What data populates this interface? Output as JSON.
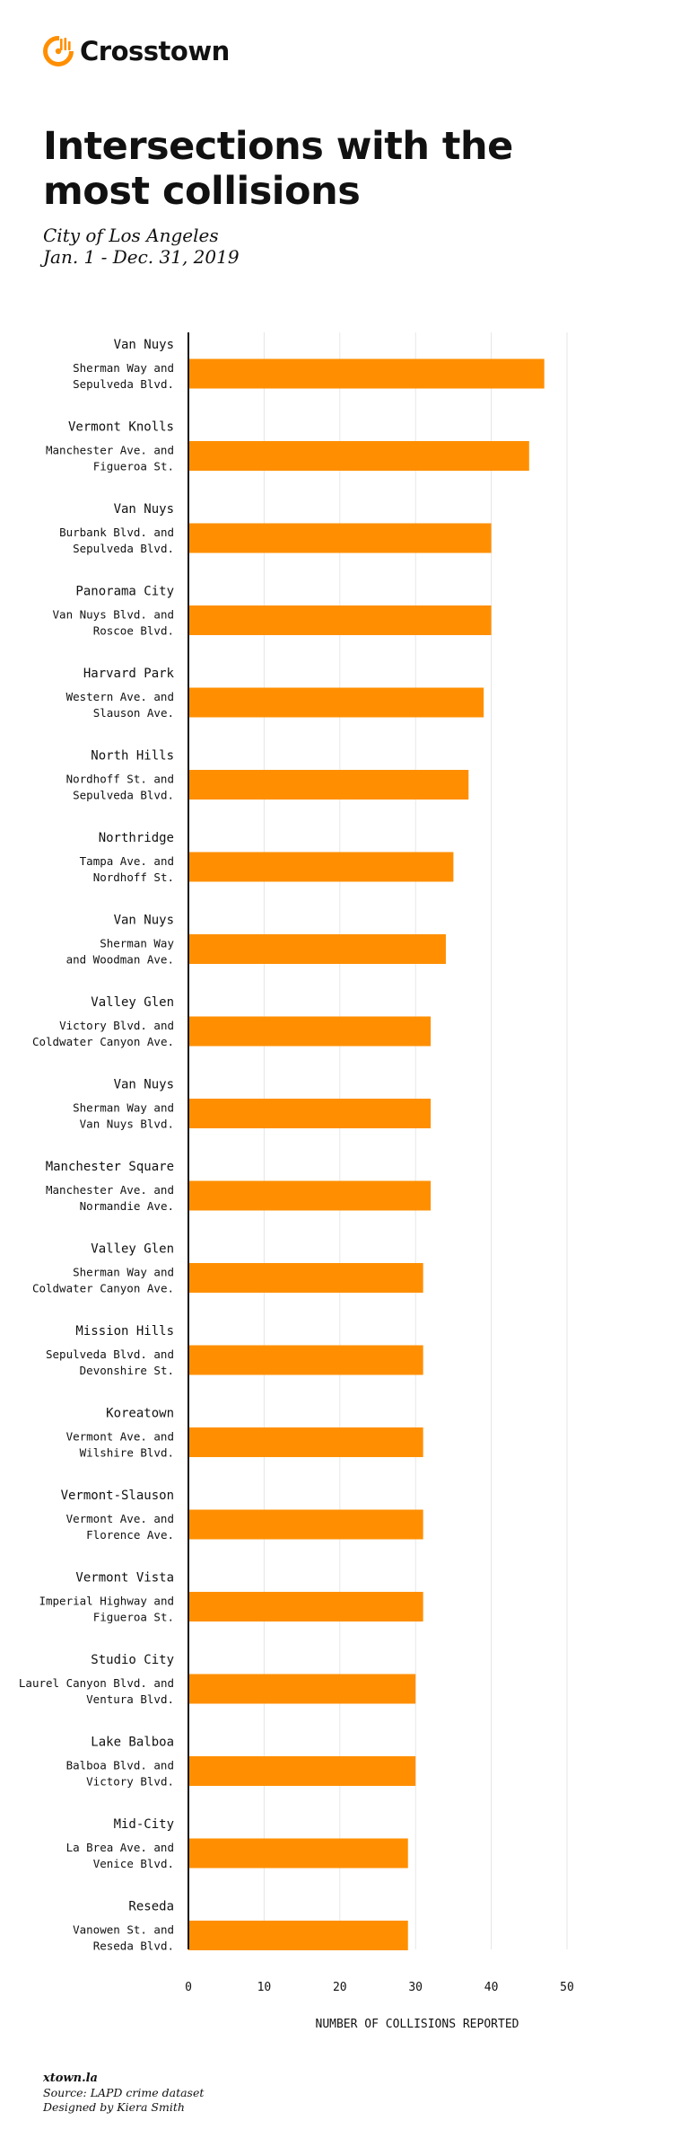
{
  "brand": {
    "name": "Crosstown",
    "accent": "#ff8f00"
  },
  "title": "Intersections with the most collisions",
  "subtitle": {
    "line1": "City of Los Angeles",
    "line2": "Jan. 1 - Dec. 31, 2019"
  },
  "footer": {
    "site": "xtown.la",
    "source": "Source: LAPD crime dataset",
    "designer": "Designed by Kiera Smith"
  },
  "chart_data": {
    "type": "bar",
    "orientation": "horizontal",
    "xlabel": "NUMBER OF COLLISIONS REPORTED",
    "xlim": [
      0,
      50
    ],
    "xticks": [
      0,
      10,
      20,
      30,
      40,
      50
    ],
    "grid": true,
    "bar_color": "#ff8f00",
    "categories": [
      {
        "neighborhood": "Van Nuys",
        "lines": [
          "Sherman Way and",
          "Sepulveda Blvd."
        ],
        "value": 47
      },
      {
        "neighborhood": "Vermont Knolls",
        "lines": [
          "Manchester Ave. and",
          "Figueroa St."
        ],
        "value": 45
      },
      {
        "neighborhood": "Van Nuys",
        "lines": [
          "Burbank Blvd. and",
          "Sepulveda Blvd."
        ],
        "value": 40
      },
      {
        "neighborhood": "Panorama City",
        "lines": [
          "Van Nuys Blvd. and",
          "Roscoe Blvd."
        ],
        "value": 40
      },
      {
        "neighborhood": "Harvard Park",
        "lines": [
          "Western Ave. and",
          "Slauson Ave."
        ],
        "value": 39
      },
      {
        "neighborhood": "North Hills",
        "lines": [
          "Nordhoff St. and",
          "Sepulveda Blvd."
        ],
        "value": 37
      },
      {
        "neighborhood": "Northridge",
        "lines": [
          "Tampa Ave. and",
          "Nordhoff St."
        ],
        "value": 35
      },
      {
        "neighborhood": "Van Nuys",
        "lines": [
          "Sherman Way",
          "and Woodman Ave."
        ],
        "value": 34
      },
      {
        "neighborhood": "Valley Glen",
        "lines": [
          "Victory Blvd. and",
          "Coldwater Canyon Ave."
        ],
        "value": 32
      },
      {
        "neighborhood": "Van Nuys",
        "lines": [
          "Sherman Way and",
          "Van Nuys Blvd."
        ],
        "value": 32
      },
      {
        "neighborhood": "Manchester Square",
        "lines": [
          "Manchester Ave. and",
          "Normandie Ave."
        ],
        "value": 32
      },
      {
        "neighborhood": "Valley Glen",
        "lines": [
          "Sherman Way and",
          "Coldwater Canyon Ave."
        ],
        "value": 31
      },
      {
        "neighborhood": "Mission Hills",
        "lines": [
          "Sepulveda Blvd. and",
          "Devonshire St."
        ],
        "value": 31
      },
      {
        "neighborhood": "Koreatown",
        "lines": [
          "Vermont Ave. and",
          "Wilshire Blvd."
        ],
        "value": 31
      },
      {
        "neighborhood": "Vermont-Slauson",
        "lines": [
          "Vermont Ave. and",
          "Florence Ave."
        ],
        "value": 31
      },
      {
        "neighborhood": "Vermont Vista",
        "lines": [
          "Imperial Highway and",
          "Figueroa St."
        ],
        "value": 31
      },
      {
        "neighborhood": "Studio City",
        "lines": [
          "Laurel Canyon Blvd. and",
          "Ventura Blvd."
        ],
        "value": 30
      },
      {
        "neighborhood": "Lake Balboa",
        "lines": [
          "Balboa Blvd. and",
          "Victory Blvd."
        ],
        "value": 30
      },
      {
        "neighborhood": "Mid-City",
        "lines": [
          "La Brea Ave. and",
          "Venice Blvd."
        ],
        "value": 29
      },
      {
        "neighborhood": "Reseda",
        "lines": [
          "Vanowen St. and",
          "Reseda Blvd."
        ],
        "value": 29
      }
    ]
  }
}
